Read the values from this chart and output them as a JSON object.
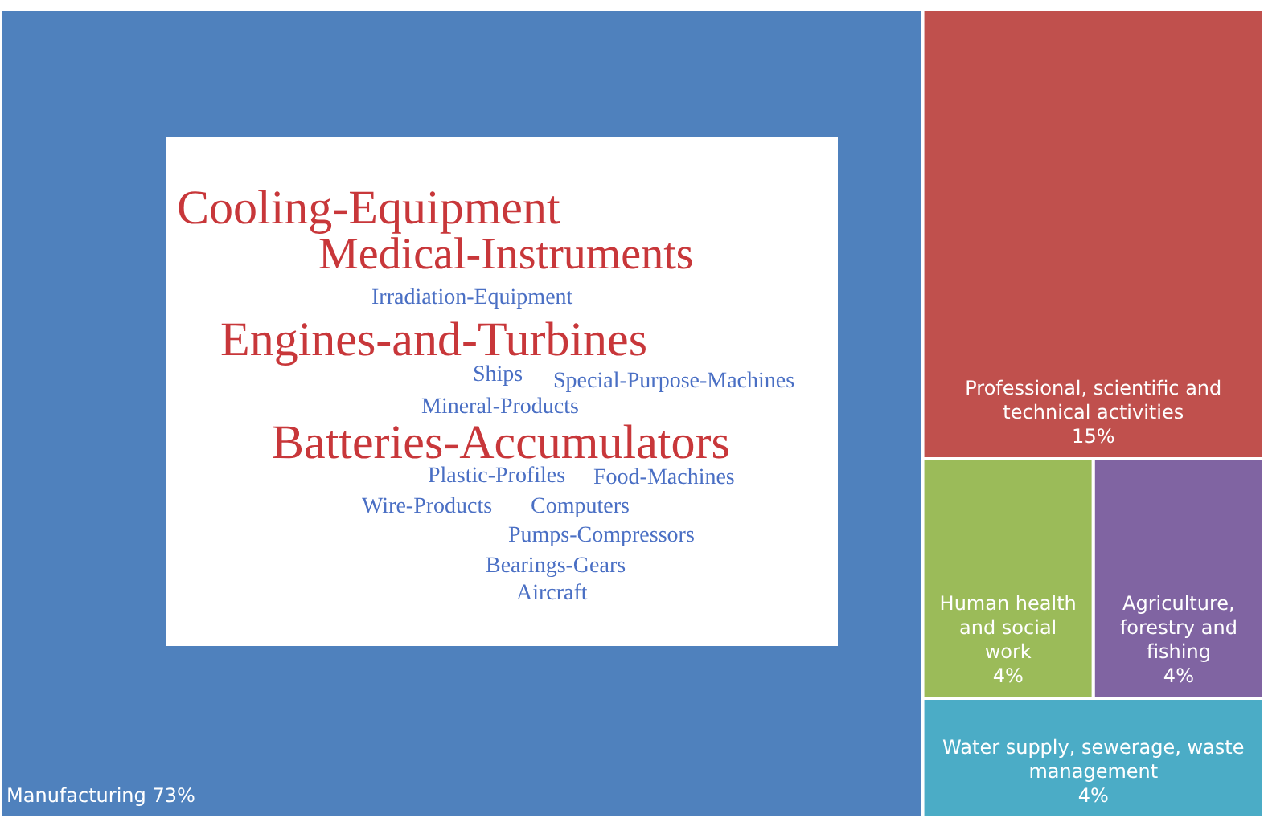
{
  "chart_data": {
    "type": "other",
    "categories": [
      "Manufacturing",
      "Professional, scientific and technical activities",
      "Human health and social work",
      "Agriculture, forestry and fishing",
      "Water supply, sewerage, waste management"
    ],
    "values": [
      73,
      15,
      4,
      4,
      4
    ],
    "value_labels": [
      "73%",
      "15%",
      "4%",
      "4%",
      "4%"
    ],
    "colors": [
      "#4f81bd",
      "#c0504d",
      "#9bbb59",
      "#8064a2",
      "#4bacc6"
    ],
    "annotations": [
      "Cooling-Equipment",
      "Medical-Instruments",
      "Irradiation-Equipment",
      "Engines-and-Turbines",
      "Ships",
      "Special-Purpose-Machines",
      "Mineral-Products",
      "Batteries-Accumulators",
      "Plastic-Profiles",
      "Food-Machines",
      "Wire-Products",
      "Computers",
      "Pumps-Compressors",
      "Bearings-Gears",
      "Aircraft"
    ]
  }
}
